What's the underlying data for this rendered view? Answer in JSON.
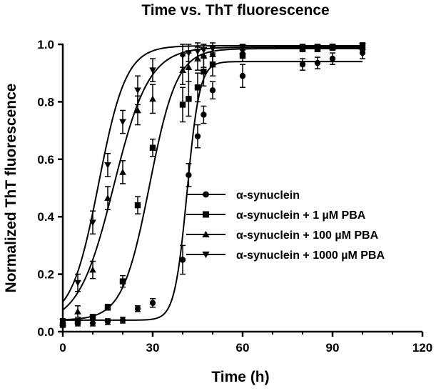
{
  "chart_data": {
    "type": "scatter",
    "title": "Time vs. ThT fluorescence",
    "xlabel": "Time (h)",
    "ylabel": "Normalized ThT fluorescence",
    "xlim": [
      0,
      120
    ],
    "ylim": [
      0,
      1.0
    ],
    "xticks": [
      "0",
      "30",
      "60",
      "90",
      "120"
    ],
    "yticks": [
      "0.0",
      "0.2",
      "0.4",
      "0.6",
      "0.8",
      "1.0"
    ],
    "grid": false,
    "legend_position": "center-right",
    "series": [
      {
        "name": "α-synuclein",
        "marker": "circle",
        "fit": {
          "bottom": 0.04,
          "top": 0.94,
          "t50": 41.5,
          "k": 0.48
        },
        "points": [
          {
            "x": 0,
            "y": 0.03,
            "err": 0.01
          },
          {
            "x": 5,
            "y": 0.03,
            "err": 0.01
          },
          {
            "x": 10,
            "y": 0.03,
            "err": 0.01
          },
          {
            "x": 15,
            "y": 0.035,
            "err": 0.01
          },
          {
            "x": 20,
            "y": 0.04,
            "err": 0.01
          },
          {
            "x": 25,
            "y": 0.08,
            "err": 0.01
          },
          {
            "x": 30,
            "y": 0.1,
            "err": 0.015
          },
          {
            "x": 40,
            "y": 0.25,
            "err": 0.05
          },
          {
            "x": 42,
            "y": 0.545,
            "err": 0.04
          },
          {
            "x": 45,
            "y": 0.68,
            "err": 0.04
          },
          {
            "x": 47,
            "y": 0.755,
            "err": 0.03
          },
          {
            "x": 50,
            "y": 0.84,
            "err": 0.03
          },
          {
            "x": 60,
            "y": 0.89,
            "err": 0.04
          },
          {
            "x": 80,
            "y": 0.93,
            "err": 0.02
          },
          {
            "x": 85,
            "y": 0.935,
            "err": 0.02
          },
          {
            "x": 90,
            "y": 0.95,
            "err": 0.02
          },
          {
            "x": 100,
            "y": 0.97,
            "err": 0.02
          }
        ]
      },
      {
        "name": "α-synuclein + 1 µM PBA",
        "marker": "square",
        "fit": {
          "bottom": 0.04,
          "top": 0.985,
          "t50": 29.0,
          "k": 0.22
        },
        "points": [
          {
            "x": 0,
            "y": 0.025,
            "err": 0.01
          },
          {
            "x": 5,
            "y": 0.035,
            "err": 0.01
          },
          {
            "x": 10,
            "y": 0.05,
            "err": 0.01
          },
          {
            "x": 15,
            "y": 0.085,
            "err": 0.01
          },
          {
            "x": 20,
            "y": 0.175,
            "err": 0.02
          },
          {
            "x": 25,
            "y": 0.44,
            "err": 0.03
          },
          {
            "x": 30,
            "y": 0.64,
            "err": 0.03
          },
          {
            "x": 40,
            "y": 0.79,
            "err": 0.06
          },
          {
            "x": 42,
            "y": 0.81,
            "err": 0.06
          },
          {
            "x": 45,
            "y": 0.85,
            "err": 0.05
          },
          {
            "x": 47,
            "y": 0.905,
            "err": 0.05
          },
          {
            "x": 50,
            "y": 0.93,
            "err": 0.04
          },
          {
            "x": 60,
            "y": 0.96,
            "err": 0.02
          },
          {
            "x": 80,
            "y": 0.985,
            "err": 0.01
          },
          {
            "x": 85,
            "y": 0.985,
            "err": 0.01
          },
          {
            "x": 90,
            "y": 0.99,
            "err": 0.01
          },
          {
            "x": 100,
            "y": 0.995,
            "err": 0.01
          }
        ]
      },
      {
        "name": "α-synuclein + 100 µM PBA",
        "marker": "triangle-up",
        "fit": {
          "bottom": 0.025,
          "top": 0.99,
          "t50": 17.0,
          "k": 0.17
        },
        "points": [
          {
            "x": 0,
            "y": 0.03,
            "err": 0.01
          },
          {
            "x": 5,
            "y": 0.07,
            "err": 0.02
          },
          {
            "x": 10,
            "y": 0.215,
            "err": 0.03
          },
          {
            "x": 15,
            "y": 0.465,
            "err": 0.04
          },
          {
            "x": 20,
            "y": 0.555,
            "err": 0.04
          },
          {
            "x": 25,
            "y": 0.77,
            "err": 0.05
          },
          {
            "x": 30,
            "y": 0.81,
            "err": 0.05
          },
          {
            "x": 40,
            "y": 0.91,
            "err": 0.05
          },
          {
            "x": 42,
            "y": 0.92,
            "err": 0.05
          },
          {
            "x": 45,
            "y": 0.95,
            "err": 0.04
          },
          {
            "x": 47,
            "y": 0.96,
            "err": 0.04
          },
          {
            "x": 50,
            "y": 0.965,
            "err": 0.03
          },
          {
            "x": 60,
            "y": 0.975,
            "err": 0.02
          },
          {
            "x": 80,
            "y": 0.985,
            "err": 0.01
          },
          {
            "x": 85,
            "y": 0.985,
            "err": 0.01
          },
          {
            "x": 90,
            "y": 0.99,
            "err": 0.01
          },
          {
            "x": 100,
            "y": 0.99,
            "err": 0.01
          }
        ]
      },
      {
        "name": "α-synuclein + 1000 µM PBA",
        "marker": "triangle-down",
        "fit": {
          "bottom": 0.04,
          "top": 0.995,
          "t50": 12.0,
          "k": 0.22
        },
        "points": [
          {
            "x": 0,
            "y": 0.035,
            "err": 0.01
          },
          {
            "x": 5,
            "y": 0.17,
            "err": 0.03
          },
          {
            "x": 10,
            "y": 0.38,
            "err": 0.04
          },
          {
            "x": 15,
            "y": 0.58,
            "err": 0.04
          },
          {
            "x": 20,
            "y": 0.73,
            "err": 0.04
          },
          {
            "x": 25,
            "y": 0.84,
            "err": 0.05
          },
          {
            "x": 30,
            "y": 0.91,
            "err": 0.04
          },
          {
            "x": 40,
            "y": 0.96,
            "err": 0.04
          },
          {
            "x": 42,
            "y": 0.97,
            "err": 0.03
          },
          {
            "x": 45,
            "y": 0.975,
            "err": 0.03
          },
          {
            "x": 47,
            "y": 0.98,
            "err": 0.02
          },
          {
            "x": 50,
            "y": 0.985,
            "err": 0.02
          },
          {
            "x": 60,
            "y": 0.99,
            "err": 0.01
          },
          {
            "x": 80,
            "y": 0.99,
            "err": 0.01
          },
          {
            "x": 85,
            "y": 0.99,
            "err": 0.01
          },
          {
            "x": 90,
            "y": 0.99,
            "err": 0.01
          },
          {
            "x": 100,
            "y": 0.995,
            "err": 0.01
          }
        ]
      }
    ]
  }
}
